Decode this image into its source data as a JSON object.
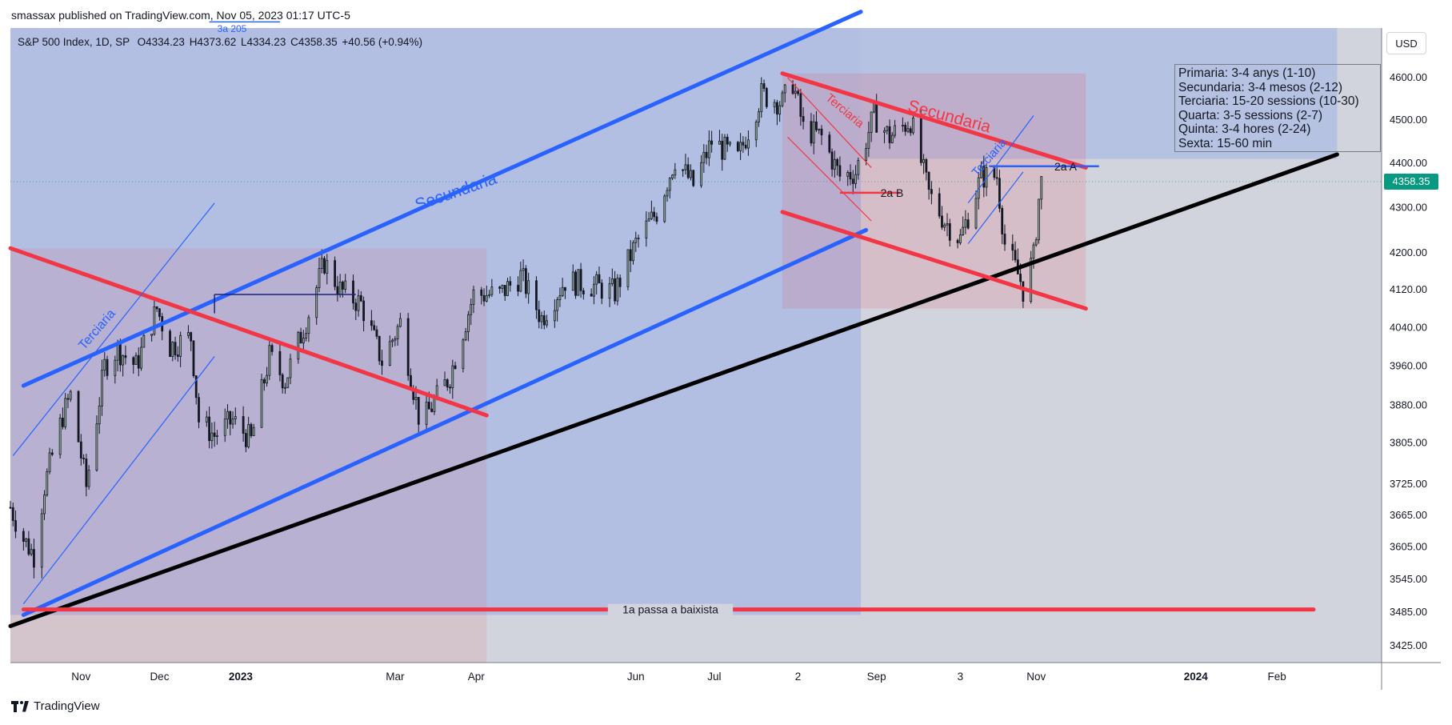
{
  "header": {
    "published_by": "smassax published on TradingView.com, Nov 05, 2023 01:17 UTC-5"
  },
  "symbol": {
    "name": "S&P 500 Index, 1D, SP",
    "open": "O4334.23",
    "high": "H4373.62",
    "low": "L4334.23",
    "close": "C4358.35",
    "change": "+40.56 (+0.94%)"
  },
  "currency_button": "USD",
  "last_price": "4358.35",
  "legend": [
    "Primaria: 3-4 anys (1-10)",
    "Secundaria: 3-4 mesos (2-12)",
    "Terciaria: 15-20 sessions (10-30)",
    "Quarta: 3-5 sessions (2-7)",
    "Quinta: 3-4 hores (2-24)",
    "Sexta: 15-60 min"
  ],
  "annotations": {
    "secundaria_up": "Secundaria",
    "secundaria_down": "Secundaria",
    "terciaria_1": "Terciaria",
    "terciaria_2": "Terciaria",
    "terciaria_3": "Terciaria",
    "label_2a_b": "2a B",
    "label_2a_a": "2a A",
    "label_1a": "1a passa a baixista",
    "label_3a": "3a 205"
  },
  "footer": {
    "brand": "TradingView"
  },
  "colors": {
    "blue": "#2962ff",
    "red": "#f23645",
    "black": "#000000",
    "up_candle": "#9cb89f",
    "down_candle": "#131722",
    "price_tag": "#089981"
  },
  "chart_data": {
    "type": "candlestick",
    "y_scale": "log",
    "ylim": [
      3395,
      4720
    ],
    "y_ticks": [
      4600.0,
      4500.0,
      4400.0,
      4300.0,
      4200.0,
      4120.0,
      4040.0,
      3960.0,
      3880.0,
      3805.0,
      3725.0,
      3665.0,
      3605.0,
      3545.0,
      3485.0,
      3425.0
    ],
    "x_ticks": [
      {
        "label": "Nov",
        "date": "2022-11-01"
      },
      {
        "label": "Dec",
        "date": "2022-12-01"
      },
      {
        "label": "2023",
        "date": "2023-01-01",
        "bold": true
      },
      {
        "label": "Mar",
        "date": "2023-03-01"
      },
      {
        "label": "Apr",
        "date": "2023-04-01"
      },
      {
        "label": "Jun",
        "date": "2023-06-01"
      },
      {
        "label": "Jul",
        "date": "2023-07-01"
      },
      {
        "label": "2",
        "date": "2023-08-02"
      },
      {
        "label": "Sep",
        "date": "2023-09-01"
      },
      {
        "label": "3",
        "date": "2023-10-03"
      },
      {
        "label": "Nov",
        "date": "2023-11-01"
      },
      {
        "label": "2024",
        "date": "2024-01-01",
        "bold": true
      },
      {
        "label": "Feb",
        "date": "2024-02-01"
      }
    ],
    "xlim": [
      "2022-10-05",
      "2024-03-12"
    ],
    "series": [
      {
        "kind": "close_path",
        "points": [
          [
            "2022-10-05",
            3680
          ],
          [
            "2022-10-10",
            3620
          ],
          [
            "2022-10-14",
            3590
          ],
          [
            "2022-10-18",
            3720
          ],
          [
            "2022-10-25",
            3860
          ],
          [
            "2022-10-28",
            3900
          ],
          [
            "2022-11-03",
            3720
          ],
          [
            "2022-11-10",
            3960
          ],
          [
            "2022-11-15",
            3995
          ],
          [
            "2022-11-22",
            3960
          ],
          [
            "2022-11-30",
            4080
          ],
          [
            "2022-12-05",
            4000
          ],
          [
            "2022-12-13",
            4020
          ],
          [
            "2022-12-16",
            3850
          ],
          [
            "2022-12-22",
            3820
          ],
          [
            "2022-12-29",
            3850
          ],
          [
            "2023-01-05",
            3810
          ],
          [
            "2023-01-12",
            3980
          ],
          [
            "2023-01-18",
            3930
          ],
          [
            "2023-01-27",
            4070
          ],
          [
            "2023-02-02",
            4180
          ],
          [
            "2023-02-08",
            4120
          ],
          [
            "2023-02-16",
            4090
          ],
          [
            "2023-02-24",
            3970
          ],
          [
            "2023-03-03",
            4050
          ],
          [
            "2023-03-10",
            3860
          ],
          [
            "2023-03-13",
            3860
          ],
          [
            "2023-03-22",
            3940
          ],
          [
            "2023-03-31",
            4110
          ],
          [
            "2023-04-10",
            4110
          ],
          [
            "2023-04-18",
            4150
          ],
          [
            "2023-04-26",
            4060
          ],
          [
            "2023-05-05",
            4140
          ],
          [
            "2023-05-15",
            4130
          ],
          [
            "2023-05-24",
            4115
          ],
          [
            "2023-06-01",
            4220
          ],
          [
            "2023-06-09",
            4290
          ],
          [
            "2023-06-16",
            4410
          ],
          [
            "2023-06-23",
            4350
          ],
          [
            "2023-06-30",
            4450
          ],
          [
            "2023-07-10",
            4410
          ],
          [
            "2023-07-19",
            4560
          ],
          [
            "2023-07-27",
            4540
          ],
          [
            "2023-07-31",
            4590
          ],
          [
            "2023-08-04",
            4480
          ],
          [
            "2023-08-11",
            4460
          ],
          [
            "2023-08-18",
            4370
          ],
          [
            "2023-08-24",
            4380
          ],
          [
            "2023-08-31",
            4510
          ],
          [
            "2023-09-06",
            4460
          ],
          [
            "2023-09-14",
            4500
          ],
          [
            "2023-09-21",
            4330
          ],
          [
            "2023-09-27",
            4270
          ],
          [
            "2023-10-03",
            4230
          ],
          [
            "2023-10-11",
            4370
          ],
          [
            "2023-10-17",
            4370
          ],
          [
            "2023-10-20",
            4220
          ],
          [
            "2023-10-26",
            4140
          ],
          [
            "2023-10-27",
            4120
          ],
          [
            "2023-10-31",
            4190
          ],
          [
            "2023-11-02",
            4318
          ],
          [
            "2023-11-03",
            4358
          ]
        ]
      }
    ],
    "drawings": [
      {
        "name": "secundaria-up-top",
        "color": "blue",
        "from": [
          "2022-10-10",
          3920
        ],
        "to": [
          "2023-08-26",
          4760
        ]
      },
      {
        "name": "secundaria-up-bottom",
        "color": "blue",
        "from": [
          "2022-10-10",
          3480
        ],
        "to": [
          "2023-08-28",
          4250
        ]
      },
      {
        "name": "primaria-support",
        "color": "black",
        "from": [
          "2022-10-05",
          3460
        ],
        "to": [
          "2024-02-24",
          4420
        ]
      },
      {
        "name": "secundaria-down-top",
        "color": "red",
        "from": [
          "2023-07-27",
          4610
        ],
        "to": [
          "2023-11-20",
          4390
        ]
      },
      {
        "name": "secundaria-down-bottom",
        "color": "red",
        "from": [
          "2023-07-27",
          4290
        ],
        "to": [
          "2023-11-20",
          4080
        ]
      },
      {
        "name": "red-downtrend-2022",
        "color": "red",
        "from": [
          "2022-10-05",
          4210
        ],
        "to": [
          "2023-04-05",
          3860
        ]
      },
      {
        "name": "support-1a",
        "color": "red",
        "from": [
          "2022-10-10",
          3490
        ],
        "to": [
          "2024-02-15",
          3490
        ]
      }
    ]
  }
}
